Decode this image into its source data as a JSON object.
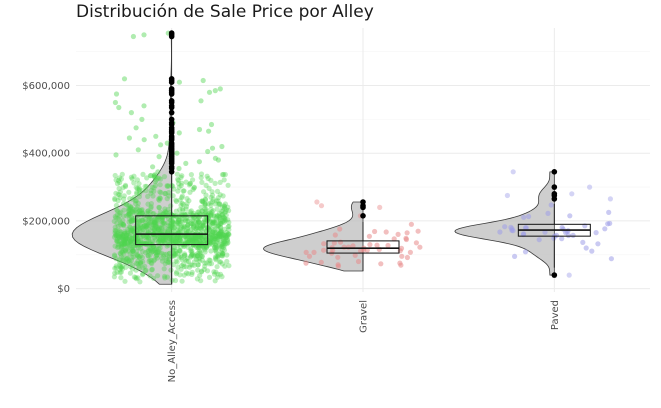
{
  "chart_data": {
    "type": "violin+box+jitter",
    "title": "Distribución de Sale Price por Alley",
    "xlabel": "",
    "ylabel": "",
    "y_ticks": [
      0,
      200000,
      400000,
      600000
    ],
    "y_tick_labels": [
      "$0",
      "$200,000",
      "$400,000",
      "$600,000"
    ],
    "ylim": [
      -10000,
      770000
    ],
    "grid": true,
    "categories": [
      "No_Alley_Access",
      "Gravel",
      "Paved"
    ],
    "colors": {
      "No_Alley_Access": "#4fd44f",
      "Gravel": "#e88a8a",
      "Paved": "#9f9fe8"
    },
    "groups": [
      {
        "name": "No_Alley_Access",
        "box": {
          "min": 13000,
          "q1": 130000,
          "median": 161000,
          "q3": 215000,
          "max": 340000
        },
        "outliers": [
          345000,
          355000,
          360000,
          370000,
          375000,
          380000,
          385000,
          390000,
          395000,
          400000,
          405000,
          410000,
          415000,
          420000,
          425000,
          430000,
          440000,
          445000,
          450000,
          460000,
          465000,
          470000,
          475000,
          485000,
          490000,
          500000,
          520000,
          535000,
          540000,
          550000,
          555000,
          575000,
          580000,
          585000,
          590000,
          610000,
          615000,
          620000,
          745000,
          750000,
          755000
        ],
        "violin_peak": 140000,
        "n_points": 1369
      },
      {
        "name": "Gravel",
        "box": {
          "min": 52000,
          "q1": 105000,
          "median": 119500,
          "q3": 141000,
          "max": 197000
        },
        "outliers": [
          215000,
          240000,
          245000,
          256000
        ],
        "violin_peak": 115000,
        "n_points": 50
      },
      {
        "name": "Paved",
        "box": {
          "min": 62000,
          "q1": 155000,
          "median": 173000,
          "q3": 190000,
          "max": 250000
        },
        "outliers": [
          40000,
          265000,
          275000,
          280000,
          300000,
          345000
        ],
        "violin_peak": 170000,
        "n_points": 41
      }
    ]
  }
}
